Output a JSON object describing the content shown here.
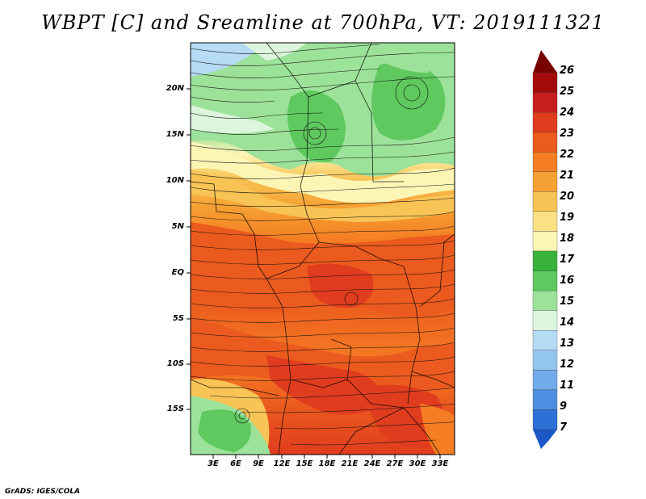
{
  "title": "WBPT [C] and Sreamline at 700hPa, VT: 2019111321",
  "credit": "GrADS: IGES/COLA",
  "lat_labels": [
    "20N",
    "15N",
    "10N",
    "5N",
    "EQ",
    "5S",
    "10S",
    "15S"
  ],
  "lon_labels": [
    "3E",
    "6E",
    "9E",
    "12E",
    "15E",
    "18E",
    "21E",
    "24E",
    "27E",
    "30E",
    "33E"
  ],
  "colorbar": {
    "labels": [
      "26",
      "25",
      "24",
      "23",
      "22",
      "21",
      "20",
      "19",
      "18",
      "17",
      "16",
      "15",
      "14",
      "13",
      "12",
      "11",
      "9",
      "7"
    ],
    "colors": [
      "#a50a0a",
      "#c81e1e",
      "#e03c1e",
      "#eb5a1e",
      "#f57d23",
      "#f5a032",
      "#f8c455",
      "#fbe184",
      "#fcf5b4",
      "#38b23a",
      "#5fc95f",
      "#9de29a",
      "#dcf5dc",
      "#b6dcf5",
      "#94c5f0",
      "#73aaeb",
      "#4f8fe1",
      "#2f70d6"
    ],
    "top_arrow_color": "#7a0000",
    "bottom_arrow_color": "#1c57c8"
  }
}
